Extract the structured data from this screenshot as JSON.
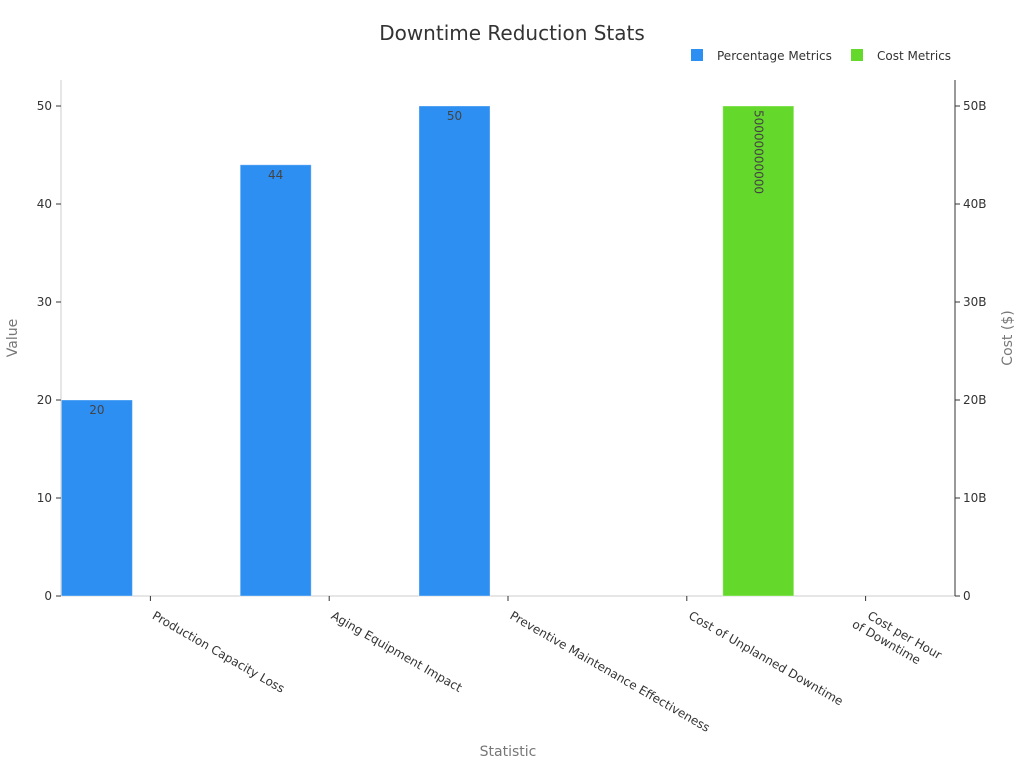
{
  "chart_data": {
    "type": "bar",
    "title": "Downtime Reduction Stats",
    "xlabel": "Statistic",
    "ylabel": "Value",
    "y2label": "Cost ($)",
    "categories": [
      [
        "Production Capacity Loss"
      ],
      [
        "Aging Equipment Impact"
      ],
      [
        "Preventive Maintenance Effectiveness"
      ],
      [
        "Cost of Unplanned Downtime"
      ],
      [
        "Cost per Hour",
        "of Downtime"
      ]
    ],
    "ylim": [
      0,
      52.5
    ],
    "y_ticks": [
      0,
      10,
      20,
      30,
      40,
      50
    ],
    "y2lim": [
      0,
      52500000000
    ],
    "y2_ticks": [
      0,
      10000000000,
      20000000000,
      30000000000,
      40000000000,
      50000000000
    ],
    "y2_tick_labels": [
      "0",
      "10B",
      "20B",
      "30B",
      "40B",
      "50B"
    ],
    "legend_position": "top-right",
    "series": [
      {
        "name": "Percentage Metrics",
        "axis": "left",
        "color": "#2e8ff2",
        "values": [
          20,
          44,
          50,
          null,
          null
        ],
        "labels": [
          "20",
          "44",
          "50",
          "",
          ""
        ]
      },
      {
        "name": "Cost Metrics",
        "axis": "right",
        "color": "#64d92b",
        "values": [
          null,
          null,
          null,
          50000000000,
          null
        ],
        "labels": [
          "",
          "",
          "",
          "50000000000",
          ""
        ]
      }
    ]
  }
}
